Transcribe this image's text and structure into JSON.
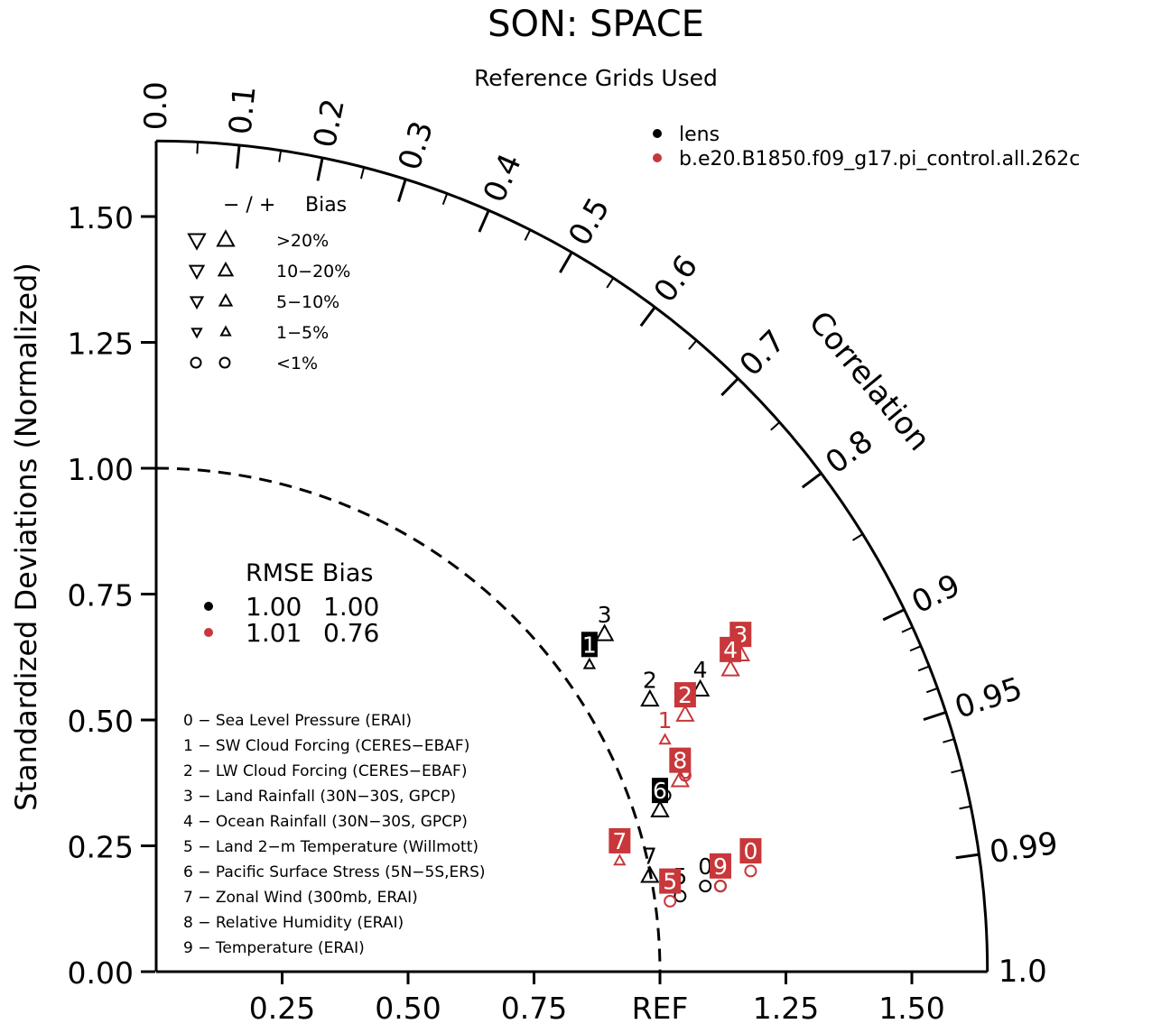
{
  "chart_data": {
    "type": "taylor",
    "title": "SON: SPACE",
    "subtitle": "Reference Grids Used",
    "ylabel": "Standardized Deviations (Normalized)",
    "xlabel": "REF",
    "arc_label": "Correlation",
    "std_range": [
      0,
      1.65
    ],
    "std_ticks_y": [
      "0.00",
      "0.25",
      "0.50",
      "0.75",
      "1.00",
      "1.25",
      "1.50"
    ],
    "std_ticks_x": [
      "0.25",
      "0.50",
      "0.75",
      "REF",
      "1.25",
      "1.50"
    ],
    "corr_ticks": [
      "0.0",
      "0.1",
      "0.2",
      "0.3",
      "0.4",
      "0.5",
      "0.6",
      "0.7",
      "0.8",
      "0.9",
      "0.95",
      "0.99",
      "1.0"
    ],
    "ref_std": 1.0,
    "grid": false,
    "legend_position": "top-right",
    "series": [
      {
        "name": "lens",
        "color": "#000000",
        "rmse": "1.00",
        "bias": "1.00",
        "points": [
          {
            "label": "0",
            "x": 1.09,
            "y": 0.17,
            "bias_marker": "circle"
          },
          {
            "label": "1",
            "x": 0.86,
            "y": 0.61,
            "bias_marker": "triangle-up-small"
          },
          {
            "label": "2",
            "x": 0.98,
            "y": 0.54,
            "bias_marker": "triangle-up"
          },
          {
            "label": "3",
            "x": 0.89,
            "y": 0.67,
            "bias_marker": "triangle-up"
          },
          {
            "label": "4",
            "x": 1.08,
            "y": 0.56,
            "bias_marker": "triangle-up"
          },
          {
            "label": "5",
            "x": 1.04,
            "y": 0.15,
            "bias_marker": "circle"
          },
          {
            "label": "6",
            "x": 1.0,
            "y": 0.32,
            "bias_marker": "triangle-up"
          },
          {
            "label": "7",
            "x": 0.98,
            "y": 0.19,
            "bias_marker": "triangle-up"
          },
          {
            "label": "8",
            "x": 1.01,
            "y": 0.35,
            "bias_marker": "circle"
          },
          {
            "label": "9",
            "x": 1.12,
            "y": 0.17,
            "bias_marker": "circle"
          }
        ]
      },
      {
        "name": "b.e20.B1850.f09_g17.pi_control.all.262c",
        "color": "#c8373a",
        "rmse": "1.01",
        "bias": "0.76",
        "points": [
          {
            "label": "0",
            "x": 1.18,
            "y": 0.2,
            "bias_marker": "circle"
          },
          {
            "label": "1",
            "x": 1.01,
            "y": 0.46,
            "bias_marker": "triangle-up-small"
          },
          {
            "label": "2",
            "x": 1.05,
            "y": 0.51,
            "bias_marker": "triangle-up"
          },
          {
            "label": "3",
            "x": 1.16,
            "y": 0.63,
            "bias_marker": "triangle-up"
          },
          {
            "label": "4",
            "x": 1.14,
            "y": 0.6,
            "bias_marker": "triangle-up"
          },
          {
            "label": "5",
            "x": 1.02,
            "y": 0.14,
            "bias_marker": "circle"
          },
          {
            "label": "6",
            "x": 1.05,
            "y": 0.39,
            "bias_marker": "circle"
          },
          {
            "label": "7",
            "x": 0.92,
            "y": 0.22,
            "bias_marker": "triangle-up-small"
          },
          {
            "label": "8",
            "x": 1.04,
            "y": 0.38,
            "bias_marker": "triangle-up"
          },
          {
            "label": "9",
            "x": 1.12,
            "y": 0.17,
            "bias_marker": "circle"
          }
        ]
      }
    ],
    "boxed_labels": [
      {
        "series": 0,
        "label": "1",
        "x": 0.86,
        "y": 0.65
      },
      {
        "series": 0,
        "label": "6",
        "x": 1.0,
        "y": 0.36
      },
      {
        "series": 1,
        "label": "0",
        "x": 1.18,
        "y": 0.24
      },
      {
        "series": 1,
        "label": "2",
        "x": 1.05,
        "y": 0.55
      },
      {
        "series": 1,
        "label": "3",
        "x": 1.16,
        "y": 0.67
      },
      {
        "series": 1,
        "label": "4",
        "x": 1.14,
        "y": 0.64
      },
      {
        "series": 1,
        "label": "5",
        "x": 1.02,
        "y": 0.18
      },
      {
        "series": 1,
        "label": "7",
        "x": 0.92,
        "y": 0.26
      },
      {
        "series": 1,
        "label": "8",
        "x": 1.04,
        "y": 0.42
      },
      {
        "series": 1,
        "label": "9",
        "x": 1.12,
        "y": 0.21
      }
    ],
    "plain_labels": [
      {
        "series": 0,
        "label": "3",
        "x": 0.89,
        "y": 0.71
      },
      {
        "series": 0,
        "label": "2",
        "x": 0.98,
        "y": 0.58
      },
      {
        "series": 0,
        "label": "4",
        "x": 1.08,
        "y": 0.6
      },
      {
        "series": 0,
        "label": "7",
        "x": 0.98,
        "y": 0.23
      },
      {
        "series": 0,
        "label": "5",
        "x": 1.04,
        "y": 0.19
      },
      {
        "series": 0,
        "label": "0",
        "x": 1.09,
        "y": 0.21
      },
      {
        "series": 1,
        "label": "1",
        "x": 1.01,
        "y": 0.5
      },
      {
        "series": 1,
        "label": "6",
        "x": 1.05,
        "y": 0.4
      }
    ],
    "bias_legend": {
      "header_symbols": "−  /  +",
      "header_label": "Bias",
      "rows": [
        {
          "label": ">20%",
          "size": 18
        },
        {
          "label": "10−20%",
          "size": 15
        },
        {
          "label": "5−10%",
          "size": 13
        },
        {
          "label": "1−5%",
          "size": 10
        },
        {
          "label": "<1%",
          "size": "circle"
        }
      ]
    },
    "stats_legend": {
      "header": "RMSE Bias"
    },
    "variables": [
      "0 − Sea Level Pressure (ERAI)",
      "1 − SW Cloud Forcing (CERES−EBAF)",
      "2 − LW Cloud Forcing (CERES−EBAF)",
      "3 − Land Rainfall (30N−30S, GPCP)",
      "4 − Ocean Rainfall (30N−30S, GPCP)",
      "5 − Land 2−m Temperature (Willmott)",
      "6 − Pacific Surface Stress (5N−5S,ERS)",
      "7 − Zonal Wind (300mb, ERAI)",
      "8 − Relative Humidity (ERAI)",
      "9 − Temperature (ERAI)"
    ]
  }
}
